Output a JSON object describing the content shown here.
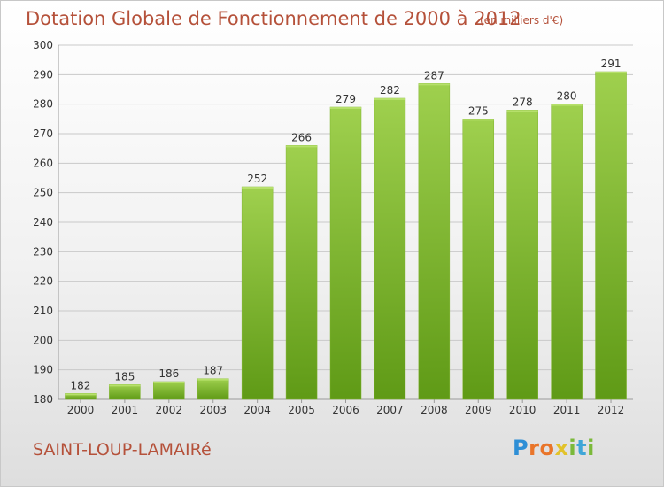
{
  "header": {
    "title": "Dotation Globale de Fonctionnement de 2000 à 2012",
    "unit": "(en milliers d'€)"
  },
  "footer": {
    "commune": "SAINT-LOUP-LAMAIRé",
    "logo_letters": [
      "P",
      "r",
      "o",
      "x",
      "i",
      "t",
      "i"
    ]
  },
  "colors": {
    "title": "#b5513a",
    "bar_top": "#9fd04e",
    "bar_bottom": "#5f9a16",
    "grid": "#c9c9c9"
  },
  "chart_data": {
    "type": "bar",
    "title": "Dotation Globale de Fonctionnement de 2000 à 2012",
    "subtitle": "(en milliers d'€)",
    "categories": [
      "2000",
      "2001",
      "2002",
      "2003",
      "2004",
      "2005",
      "2006",
      "2007",
      "2008",
      "2009",
      "2010",
      "2011",
      "2012"
    ],
    "values": [
      182,
      185,
      186,
      187,
      252,
      266,
      279,
      282,
      287,
      275,
      278,
      280,
      291
    ],
    "ylim": [
      180,
      300
    ],
    "yticks": [
      180,
      190,
      200,
      210,
      220,
      230,
      240,
      250,
      260,
      270,
      280,
      290,
      300
    ],
    "grid": true,
    "xlabel": "",
    "ylabel": ""
  }
}
